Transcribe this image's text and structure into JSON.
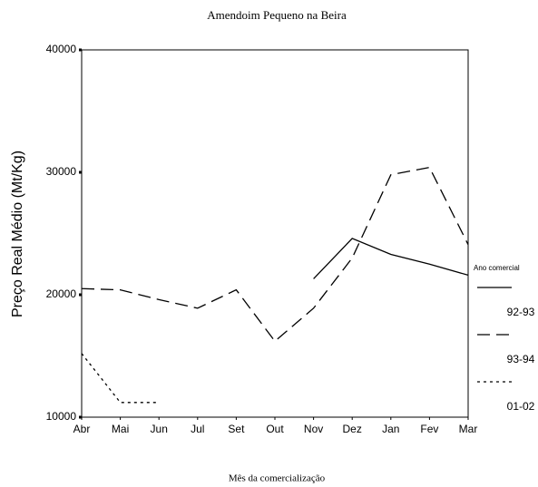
{
  "chart_data": {
    "type": "line",
    "title": "Amendoim Pequeno na Beira",
    "x_label": "Mês da comercialização",
    "y_label": "Preço Real Médio (Mt/Kg)",
    "legend_title": "Ano comercial",
    "categories": [
      "Abr",
      "Mai",
      "Jun",
      "Jul",
      "Set",
      "Out",
      "Nov",
      "Dez",
      "Jan",
      "Fev",
      "Mar"
    ],
    "series": [
      {
        "name": "92-93",
        "color": "#000000",
        "dash": "solid",
        "values": [
          null,
          null,
          null,
          null,
          null,
          null,
          21300,
          24600,
          23300,
          22500,
          21600
        ]
      },
      {
        "name": "93-94",
        "color": "#000000",
        "dash": "dashed",
        "values": [
          20500,
          20400,
          19600,
          18900,
          20400,
          16200,
          18900,
          23000,
          29800,
          30400,
          24100
        ]
      },
      {
        "name": "01-02",
        "color": "#000000",
        "dash": "dotted",
        "values": [
          15200,
          11200,
          11200,
          null,
          null,
          null,
          null,
          null,
          null,
          null,
          null
        ]
      }
    ],
    "ylim": [
      10000,
      40000
    ],
    "yticks": [
      10000,
      20000,
      30000,
      40000
    ],
    "grid": false
  }
}
